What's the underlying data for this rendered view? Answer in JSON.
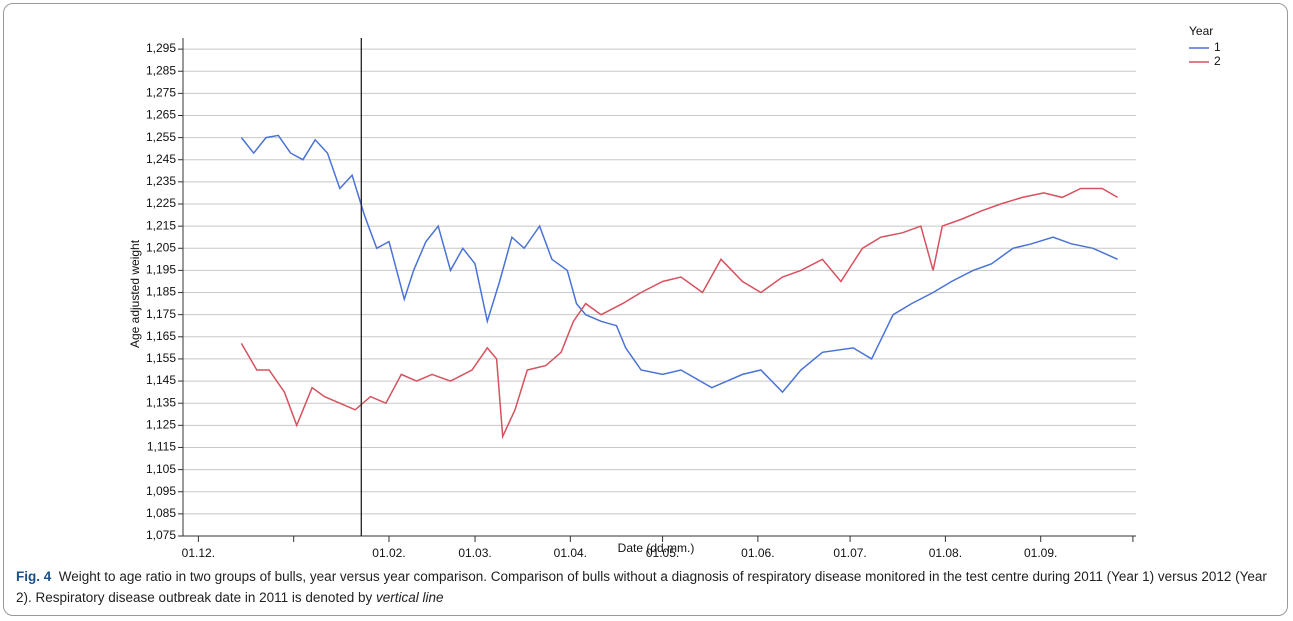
{
  "chart_data": {
    "type": "line",
    "xlabel": "Date (dd.mm.)",
    "ylabel": "Age adjusted weight",
    "xlim": [
      -5,
      305
    ],
    "xticks": [
      {
        "value": 0,
        "label": "01.12."
      },
      {
        "value": 62,
        "label": "01.02."
      },
      {
        "value": 90,
        "label": "01.03."
      },
      {
        "value": 121,
        "label": "01.04."
      },
      {
        "value": 151,
        "label": "01.05."
      },
      {
        "value": 182,
        "label": "01.06."
      },
      {
        "value": 212,
        "label": "01.07."
      },
      {
        "value": 243,
        "label": "01.08."
      },
      {
        "value": 274,
        "label": "01.09."
      }
    ],
    "xticks_unlabeled": [
      31,
      304
    ],
    "ylim": [
      1.075,
      1.3
    ],
    "yticks": [
      {
        "value": 1.075,
        "label": "1,075"
      },
      {
        "value": 1.085,
        "label": "1,085"
      },
      {
        "value": 1.095,
        "label": "1,095"
      },
      {
        "value": 1.105,
        "label": "1,105"
      },
      {
        "value": 1.115,
        "label": "1,115"
      },
      {
        "value": 1.125,
        "label": "1,125"
      },
      {
        "value": 1.135,
        "label": "1,135"
      },
      {
        "value": 1.145,
        "label": "1,145"
      },
      {
        "value": 1.155,
        "label": "1,155"
      },
      {
        "value": 1.165,
        "label": "1,165"
      },
      {
        "value": 1.175,
        "label": "1,175"
      },
      {
        "value": 1.185,
        "label": "1,185"
      },
      {
        "value": 1.195,
        "label": "1,195"
      },
      {
        "value": 1.205,
        "label": "1,205"
      },
      {
        "value": 1.215,
        "label": "1,215"
      },
      {
        "value": 1.225,
        "label": "1,225"
      },
      {
        "value": 1.235,
        "label": "1,235"
      },
      {
        "value": 1.245,
        "label": "1,245"
      },
      {
        "value": 1.255,
        "label": "1,255"
      },
      {
        "value": 1.265,
        "label": "1,265"
      },
      {
        "value": 1.275,
        "label": "1,275"
      },
      {
        "value": 1.285,
        "label": "1,285"
      },
      {
        "value": 1.295,
        "label": "1,295"
      }
    ],
    "grid": true,
    "vertical_line_x": 53,
    "legend_title": "Year",
    "legend_position": "top-right",
    "series": [
      {
        "name": "1",
        "color": "#4a73d6",
        "x": [
          14,
          18,
          22,
          26,
          30,
          34,
          38,
          42,
          46,
          50,
          54,
          58,
          62,
          67,
          70,
          74,
          78,
          82,
          86,
          90,
          94,
          98,
          102,
          106,
          111,
          115,
          120,
          123,
          126,
          131,
          136,
          139,
          144,
          151,
          157,
          167,
          177,
          183,
          190,
          196,
          203,
          213,
          219,
          226,
          232,
          239,
          245,
          252,
          258,
          265,
          271,
          278,
          284,
          291,
          299
        ],
        "values": [
          1.255,
          1.248,
          1.255,
          1.256,
          1.248,
          1.245,
          1.254,
          1.248,
          1.232,
          1.238,
          1.22,
          1.205,
          1.208,
          1.182,
          1.195,
          1.208,
          1.215,
          1.195,
          1.205,
          1.198,
          1.172,
          1.19,
          1.21,
          1.205,
          1.215,
          1.2,
          1.195,
          1.18,
          1.175,
          1.172,
          1.17,
          1.16,
          1.15,
          1.148,
          1.15,
          1.142,
          1.148,
          1.15,
          1.14,
          1.15,
          1.158,
          1.16,
          1.155,
          1.175,
          1.18,
          1.185,
          1.19,
          1.195,
          1.198,
          1.205,
          1.207,
          1.21,
          1.207,
          1.205,
          1.2
        ]
      },
      {
        "name": "2",
        "color": "#d6525e",
        "x": [
          14,
          19,
          23,
          28,
          32,
          37,
          41,
          46,
          51,
          56,
          61,
          66,
          71,
          76,
          82,
          89,
          94,
          97,
          99,
          103,
          107,
          113,
          118,
          122,
          126,
          131,
          138,
          144,
          151,
          157,
          164,
          170,
          177,
          183,
          190,
          196,
          203,
          209,
          216,
          222,
          229,
          235,
          239,
          242,
          248,
          255,
          261,
          268,
          275,
          281,
          287,
          294,
          299
        ],
        "values": [
          1.162,
          1.15,
          1.15,
          1.14,
          1.125,
          1.142,
          1.138,
          1.135,
          1.132,
          1.138,
          1.135,
          1.148,
          1.145,
          1.148,
          1.145,
          1.15,
          1.16,
          1.155,
          1.12,
          1.132,
          1.15,
          1.152,
          1.158,
          1.172,
          1.18,
          1.175,
          1.18,
          1.185,
          1.19,
          1.192,
          1.185,
          1.2,
          1.19,
          1.185,
          1.192,
          1.195,
          1.2,
          1.19,
          1.205,
          1.21,
          1.212,
          1.215,
          1.195,
          1.215,
          1.218,
          1.222,
          1.225,
          1.228,
          1.23,
          1.228,
          1.232,
          1.232,
          1.228
        ]
      }
    ]
  },
  "caption": {
    "label": "Fig. 4",
    "text": "Weight to age ratio in two groups of bulls, year versus year comparison. Comparison of bulls without a diagnosis of respiratory disease monitored in the test centre during 2011 (Year 1) versus 2012 (Year 2). Respiratory disease outbreak date in 2011 is denoted by",
    "emphasis": "vertical line"
  }
}
